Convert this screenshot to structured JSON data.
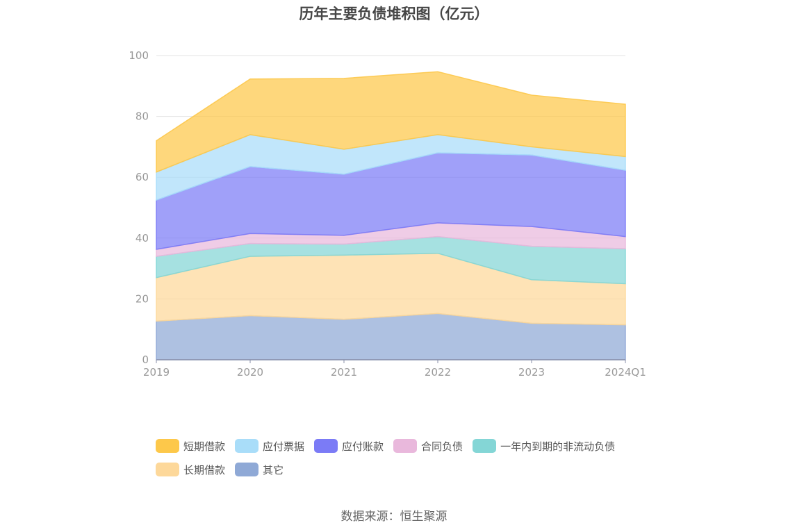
{
  "title": "历年主要负债堆积图（亿元）",
  "source": "数据来源：恒生聚源",
  "chart_data": {
    "type": "area",
    "stacked": true,
    "categories": [
      "2019",
      "2020",
      "2021",
      "2022",
      "2023",
      "2024Q1"
    ],
    "ylim": [
      0,
      100
    ],
    "yticks": [
      0,
      20,
      40,
      60,
      80,
      100
    ],
    "grid": true,
    "legend_position": "bottom",
    "series": [
      {
        "name": "其它",
        "color": "#8fa9d6",
        "values": [
          12.7,
          14.5,
          13.3,
          15.2,
          12.0,
          11.5
        ]
      },
      {
        "name": "长期借款",
        "color": "#fdd89a",
        "values": [
          14.3,
          19.5,
          21.1,
          19.8,
          14.3,
          13.5
        ]
      },
      {
        "name": "一年内到期的非流动负债",
        "color": "#84d6d6",
        "values": [
          7.0,
          4.2,
          3.6,
          5.5,
          11.0,
          11.5
        ]
      },
      {
        "name": "合同负债",
        "color": "#e9b8dc",
        "values": [
          2.3,
          3.3,
          2.9,
          4.5,
          6.5,
          4.0
        ]
      },
      {
        "name": "应付账款",
        "color": "#7b7bf6",
        "values": [
          16.2,
          22.0,
          20.1,
          23.0,
          23.5,
          21.8
        ]
      },
      {
        "name": "应付票据",
        "color": "#a9ddf9",
        "values": [
          9.2,
          10.5,
          8.2,
          6.0,
          2.7,
          4.5
        ]
      },
      {
        "name": "短期借款",
        "color": "#fdc84a",
        "values": [
          10.3,
          18.3,
          23.3,
          20.7,
          17.0,
          17.2
        ]
      }
    ],
    "legend_order": [
      "短期借款",
      "应付票据",
      "应付账款",
      "合同负债",
      "一年内到期的非流动负债",
      "长期借款",
      "其它"
    ]
  }
}
